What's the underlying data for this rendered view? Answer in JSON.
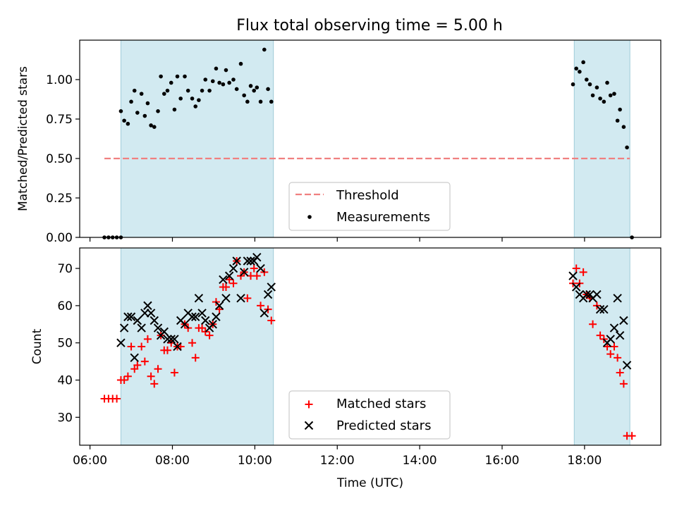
{
  "title": "Flux total observing time = 5.00 h",
  "colors": {
    "shade": "#add8e6",
    "threshold": "#f08080",
    "measurement": "#000000",
    "matched": "#ff0000",
    "predicted": "#000000"
  },
  "chart_data": [
    {
      "type": "scatter",
      "title": "Flux total observing time = 5.00 h",
      "xlabel": "",
      "ylabel": "Matched/Predicted stars",
      "x_unit": "hours UTC",
      "xlim": [
        5.75,
        19.85
      ],
      "ylim": [
        0.0,
        1.25
      ],
      "yticks": [
        "0.00",
        "0.25",
        "0.50",
        "0.75",
        "1.00"
      ],
      "shaded_x_ranges": [
        [
          6.75,
          10.45
        ],
        [
          17.75,
          19.1
        ]
      ],
      "legend_position": "lower center",
      "threshold": {
        "name": "Threshold",
        "value": 0.5,
        "x_range": [
          6.35,
          19.1
        ],
        "style": "dashed"
      },
      "series": [
        {
          "name": "Measurements",
          "marker": "dot",
          "points": [
            [
              6.35,
              0.0
            ],
            [
              6.45,
              0.0
            ],
            [
              6.55,
              0.0
            ],
            [
              6.65,
              0.0
            ],
            [
              6.75,
              0.0
            ],
            [
              6.75,
              0.8
            ],
            [
              6.83,
              0.74
            ],
            [
              6.92,
              0.72
            ],
            [
              7.0,
              0.86
            ],
            [
              7.08,
              0.93
            ],
            [
              7.15,
              0.79
            ],
            [
              7.25,
              0.91
            ],
            [
              7.33,
              0.77
            ],
            [
              7.4,
              0.85
            ],
            [
              7.48,
              0.71
            ],
            [
              7.56,
              0.7
            ],
            [
              7.65,
              0.8
            ],
            [
              7.72,
              1.02
            ],
            [
              7.8,
              0.91
            ],
            [
              7.88,
              0.93
            ],
            [
              7.97,
              0.98
            ],
            [
              8.05,
              0.81
            ],
            [
              8.12,
              1.02
            ],
            [
              8.2,
              0.88
            ],
            [
              8.3,
              1.02
            ],
            [
              8.38,
              0.93
            ],
            [
              8.48,
              0.88
            ],
            [
              8.56,
              0.83
            ],
            [
              8.64,
              0.87
            ],
            [
              8.72,
              0.93
            ],
            [
              8.8,
              1.0
            ],
            [
              8.9,
              0.93
            ],
            [
              8.98,
              0.99
            ],
            [
              9.06,
              1.07
            ],
            [
              9.14,
              0.98
            ],
            [
              9.23,
              0.97
            ],
            [
              9.3,
              1.06
            ],
            [
              9.38,
              0.98
            ],
            [
              9.48,
              1.0
            ],
            [
              9.56,
              0.94
            ],
            [
              9.66,
              1.1
            ],
            [
              9.74,
              0.9
            ],
            [
              9.82,
              0.86
            ],
            [
              9.9,
              0.96
            ],
            [
              9.98,
              0.93
            ],
            [
              10.05,
              0.95
            ],
            [
              10.14,
              0.86
            ],
            [
              10.23,
              1.19
            ],
            [
              10.32,
              0.94
            ],
            [
              10.4,
              0.86
            ],
            [
              17.72,
              0.97
            ],
            [
              17.8,
              1.07
            ],
            [
              17.88,
              1.05
            ],
            [
              17.97,
              1.11
            ],
            [
              18.05,
              1.0
            ],
            [
              18.13,
              0.97
            ],
            [
              18.2,
              0.9
            ],
            [
              18.3,
              0.95
            ],
            [
              18.38,
              0.88
            ],
            [
              18.47,
              0.86
            ],
            [
              18.55,
              0.98
            ],
            [
              18.63,
              0.9
            ],
            [
              18.72,
              0.91
            ],
            [
              18.8,
              0.74
            ],
            [
              18.86,
              0.81
            ],
            [
              18.95,
              0.7
            ],
            [
              19.03,
              0.57
            ],
            [
              19.15,
              0.0
            ]
          ]
        }
      ]
    },
    {
      "type": "scatter",
      "title": "",
      "xlabel": "Time (UTC)",
      "ylabel": "Count",
      "x_unit": "hours UTC",
      "xlim": [
        5.75,
        19.85
      ],
      "ylim": [
        22.5,
        75.5
      ],
      "yticks": [
        "30",
        "40",
        "50",
        "60",
        "70"
      ],
      "xticks": [
        "06:00",
        "08:00",
        "10:00",
        "12:00",
        "14:00",
        "16:00",
        "18:00"
      ],
      "shaded_x_ranges": [
        [
          6.75,
          10.45
        ],
        [
          17.75,
          19.1
        ]
      ],
      "legend_position": "lower center",
      "series": [
        {
          "name": "Matched stars",
          "marker": "plus",
          "points": [
            [
              6.35,
              35
            ],
            [
              6.45,
              35
            ],
            [
              6.55,
              35
            ],
            [
              6.65,
              35
            ],
            [
              6.75,
              40
            ],
            [
              6.83,
              40
            ],
            [
              6.92,
              41
            ],
            [
              7.0,
              49
            ],
            [
              7.08,
              43
            ],
            [
              7.15,
              44
            ],
            [
              7.25,
              49
            ],
            [
              7.33,
              45
            ],
            [
              7.4,
              51
            ],
            [
              7.48,
              41
            ],
            [
              7.56,
              39
            ],
            [
              7.65,
              43
            ],
            [
              7.72,
              52
            ],
            [
              7.8,
              48
            ],
            [
              7.88,
              48
            ],
            [
              7.97,
              50
            ],
            [
              8.05,
              42
            ],
            [
              8.12,
              49
            ],
            [
              8.2,
              49
            ],
            [
              8.3,
              55
            ],
            [
              8.38,
              54
            ],
            [
              8.48,
              50
            ],
            [
              8.56,
              46
            ],
            [
              8.64,
              54
            ],
            [
              8.72,
              54
            ],
            [
              8.8,
              53
            ],
            [
              8.9,
              52
            ],
            [
              8.98,
              55
            ],
            [
              9.06,
              61
            ],
            [
              9.14,
              59
            ],
            [
              9.23,
              65
            ],
            [
              9.3,
              65
            ],
            [
              9.38,
              67
            ],
            [
              9.48,
              66
            ],
            [
              9.56,
              72
            ],
            [
              9.66,
              68
            ],
            [
              9.74,
              69
            ],
            [
              9.82,
              62
            ],
            [
              9.9,
              68
            ],
            [
              9.98,
              70
            ],
            [
              10.05,
              68
            ],
            [
              10.14,
              60
            ],
            [
              10.23,
              69
            ],
            [
              10.32,
              59
            ],
            [
              10.4,
              56
            ],
            [
              17.72,
              66
            ],
            [
              17.8,
              70
            ],
            [
              17.88,
              66
            ],
            [
              17.97,
              69
            ],
            [
              18.05,
              63
            ],
            [
              18.13,
              62
            ],
            [
              18.2,
              55
            ],
            [
              18.3,
              60
            ],
            [
              18.38,
              52
            ],
            [
              18.47,
              51
            ],
            [
              18.55,
              49
            ],
            [
              18.63,
              47
            ],
            [
              18.72,
              49
            ],
            [
              18.8,
              46
            ],
            [
              18.86,
              42
            ],
            [
              18.95,
              39
            ],
            [
              19.03,
              25
            ],
            [
              19.15,
              25
            ]
          ]
        },
        {
          "name": "Predicted stars",
          "marker": "x",
          "points": [
            [
              6.75,
              50
            ],
            [
              6.83,
              54
            ],
            [
              6.92,
              57
            ],
            [
              7.0,
              57
            ],
            [
              7.08,
              46
            ],
            [
              7.15,
              56
            ],
            [
              7.25,
              54
            ],
            [
              7.33,
              58
            ],
            [
              7.4,
              60
            ],
            [
              7.48,
              58
            ],
            [
              7.56,
              56
            ],
            [
              7.65,
              54
            ],
            [
              7.72,
              52
            ],
            [
              7.8,
              53
            ],
            [
              7.88,
              51
            ],
            [
              7.97,
              51
            ],
            [
              8.05,
              51
            ],
            [
              8.12,
              49
            ],
            [
              8.2,
              56
            ],
            [
              8.3,
              55
            ],
            [
              8.38,
              58
            ],
            [
              8.48,
              57
            ],
            [
              8.56,
              57
            ],
            [
              8.64,
              62
            ],
            [
              8.72,
              58
            ],
            [
              8.8,
              56
            ],
            [
              8.9,
              54
            ],
            [
              8.98,
              55
            ],
            [
              9.06,
              57
            ],
            [
              9.14,
              60
            ],
            [
              9.23,
              67
            ],
            [
              9.3,
              62
            ],
            [
              9.38,
              68
            ],
            [
              9.48,
              70
            ],
            [
              9.56,
              72
            ],
            [
              9.66,
              62
            ],
            [
              9.74,
              69
            ],
            [
              9.82,
              72
            ],
            [
              9.9,
              72
            ],
            [
              9.98,
              72
            ],
            [
              10.05,
              73
            ],
            [
              10.14,
              70
            ],
            [
              10.23,
              58
            ],
            [
              10.32,
              63
            ],
            [
              10.4,
              65
            ],
            [
              17.72,
              68
            ],
            [
              17.8,
              65
            ],
            [
              17.88,
              63
            ],
            [
              17.97,
              62
            ],
            [
              18.05,
              63
            ],
            [
              18.13,
              63
            ],
            [
              18.2,
              62
            ],
            [
              18.3,
              63
            ],
            [
              18.38,
              59
            ],
            [
              18.47,
              59
            ],
            [
              18.55,
              50
            ],
            [
              18.63,
              51
            ],
            [
              18.72,
              54
            ],
            [
              18.8,
              62
            ],
            [
              18.86,
              52
            ],
            [
              18.95,
              56
            ],
            [
              19.03,
              44
            ]
          ]
        }
      ]
    }
  ]
}
